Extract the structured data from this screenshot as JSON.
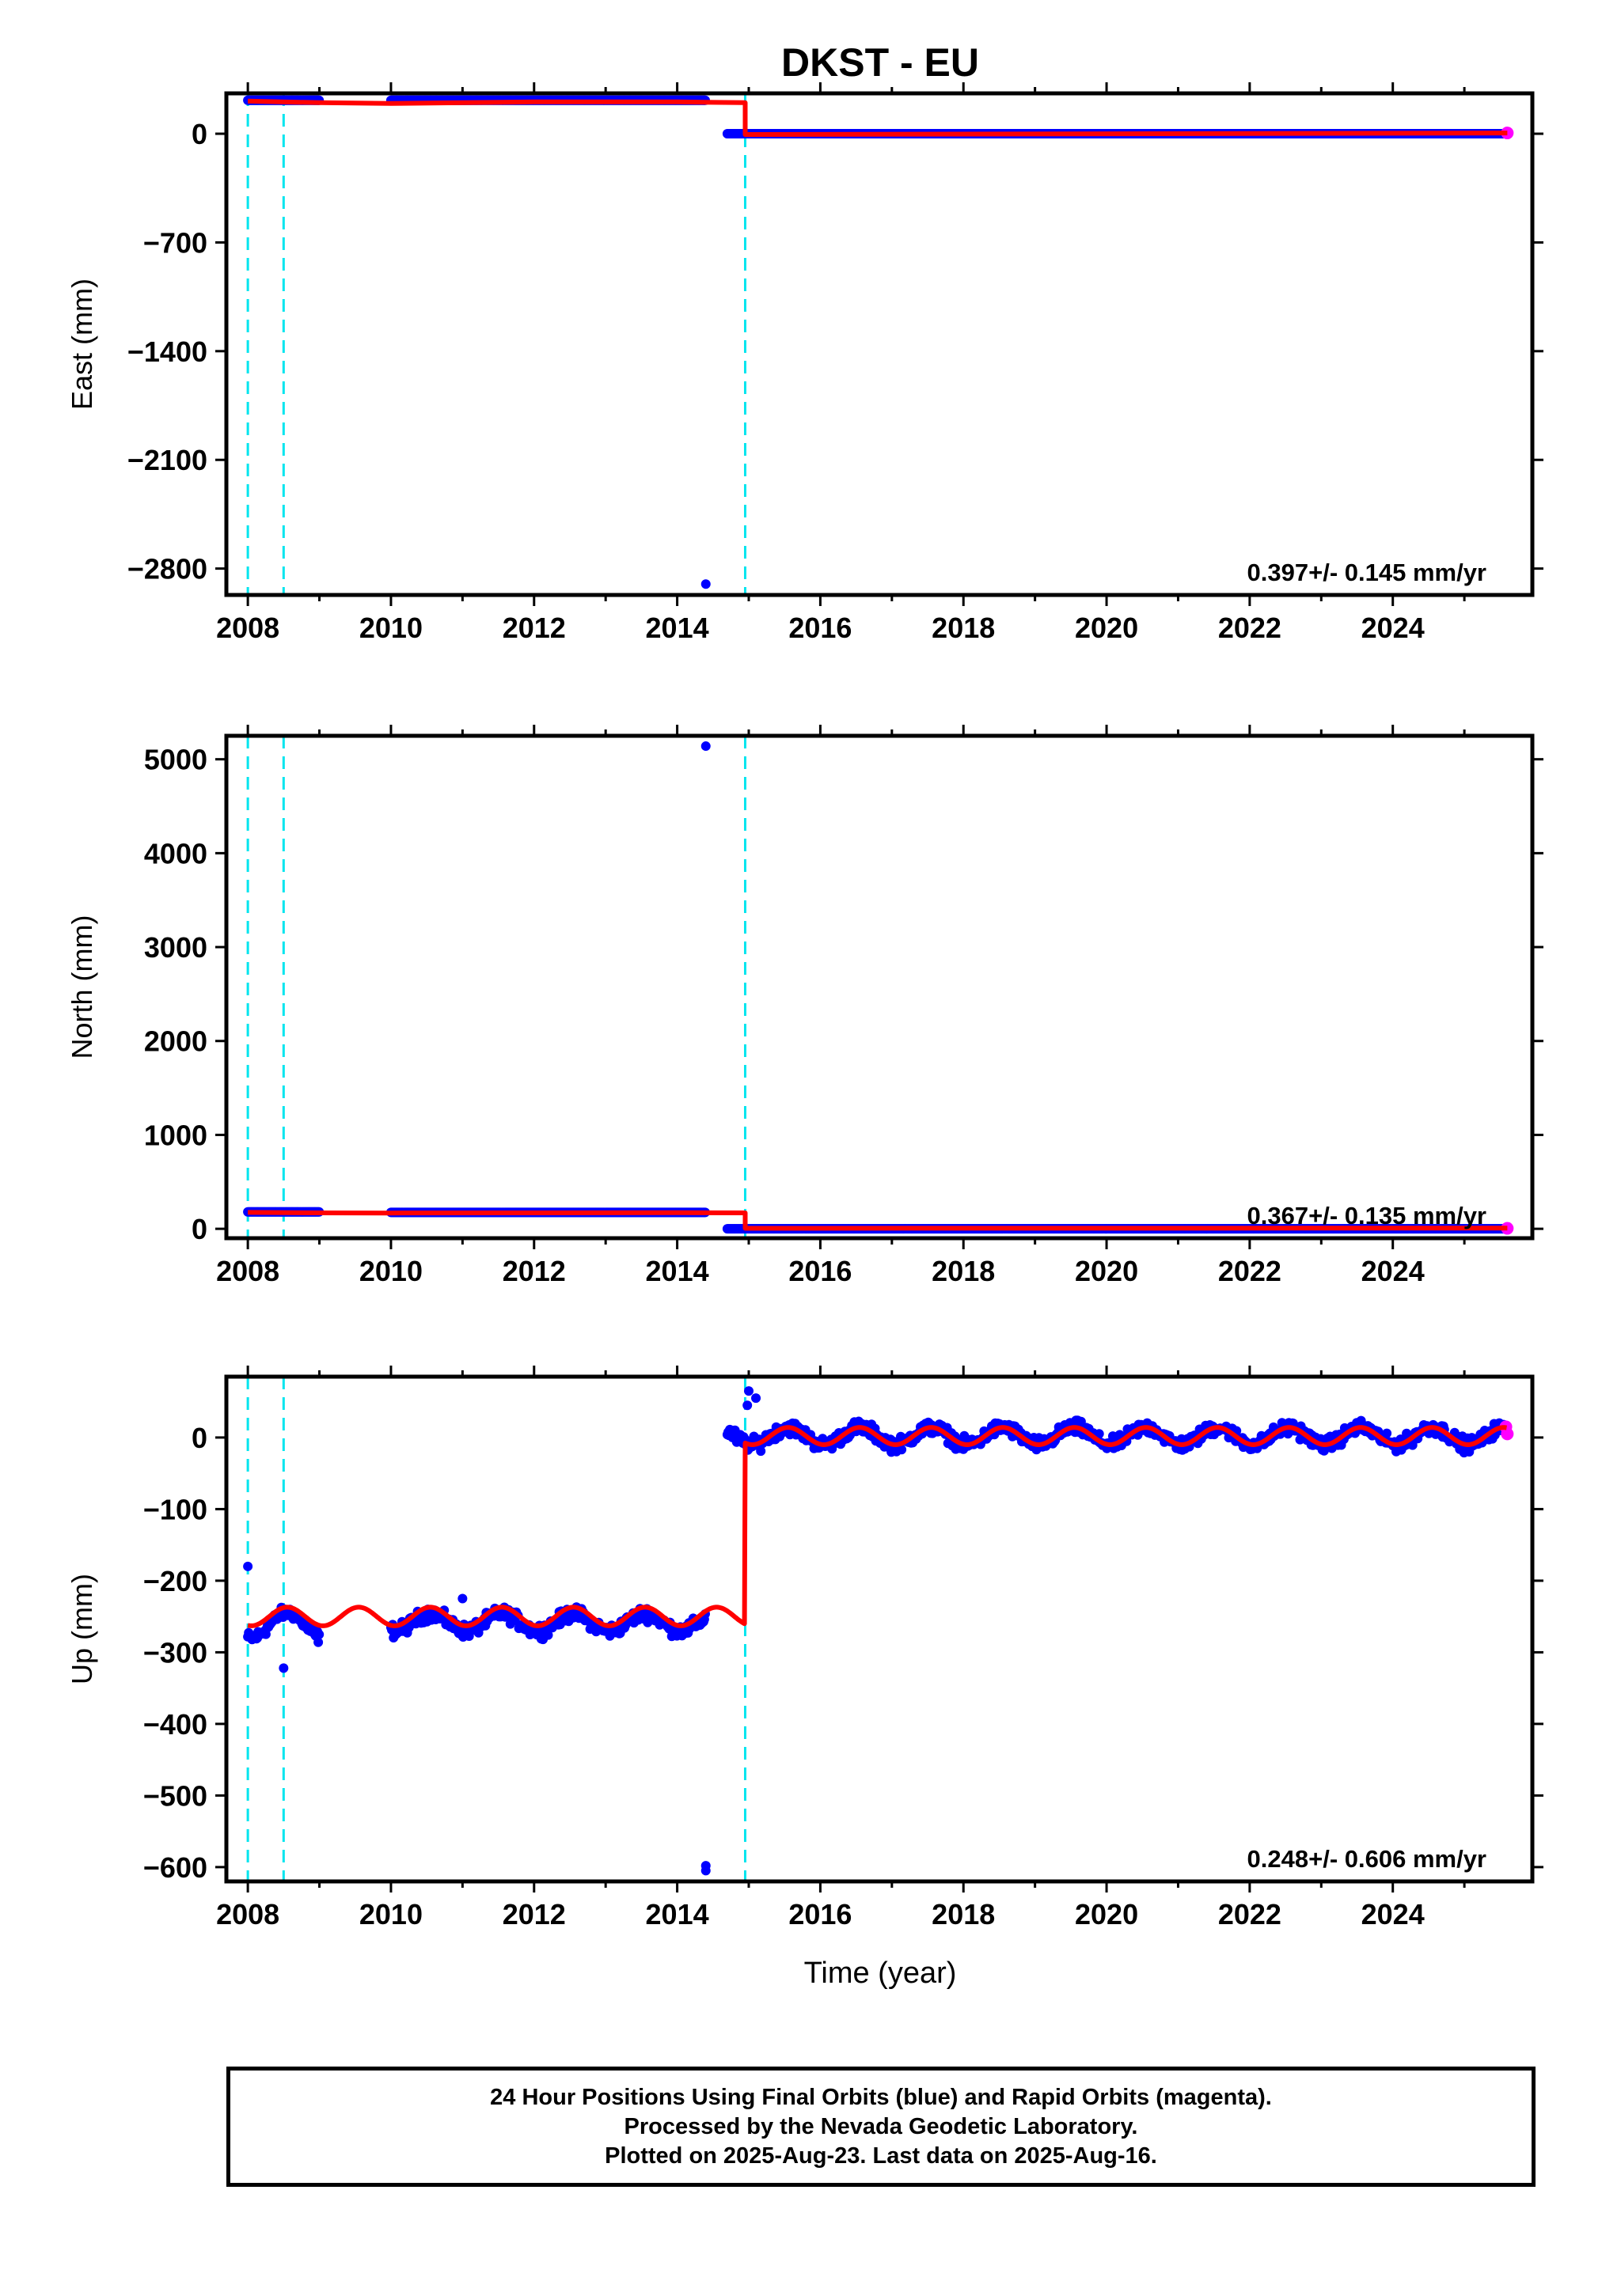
{
  "chart_title": "DKST - EU",
  "xlabel": "Time (year)",
  "colors": {
    "final_orbits": "#0000ff",
    "rapid_orbits": "#ff00ff",
    "model": "#ff0000",
    "steps": "#00e5ee",
    "frame": "#000000"
  },
  "steps": [
    2008.0,
    2008.5,
    2014.95
  ],
  "caption": [
    "24 Hour Positions Using Final Orbits (blue) and Rapid Orbits (magenta).",
    "Processed by the Nevada Geodetic Laboratory.",
    "Plotted on 2025-Aug-23. Last data on 2025-Aug-16."
  ],
  "chart_data": [
    {
      "type": "scatter",
      "component": "east",
      "ylabel": "East (mm)",
      "xlim": [
        2007.7,
        2025.95
      ],
      "ylim": [
        -2970,
        260
      ],
      "xticks": [
        2008,
        2010,
        2012,
        2014,
        2016,
        2018,
        2020,
        2022,
        2024
      ],
      "yticks": [
        0,
        -700,
        -1400,
        -2100,
        -2800
      ],
      "rate_label": "0.397+/- 0.145 mm/yr",
      "series": [
        {
          "name": "Final Orbits",
          "color": "#0000ff",
          "segments": [
            {
              "x_start": 2008.0,
              "x_end": 2009.0,
              "y": 215
            },
            {
              "x_start": 2010.0,
              "x_end": 2014.4,
              "y": 215
            },
            {
              "x_start": 2014.7,
              "x_end": 2025.55,
              "y": 0
            }
          ],
          "outliers": [
            {
              "x": 2014.4,
              "y": -2900
            }
          ]
        },
        {
          "name": "Rapid Orbits",
          "color": "#ff00ff",
          "points": [
            {
              "x": 2025.6,
              "y": 5
            }
          ]
        }
      ],
      "model": [
        [
          2008.0,
          210
        ],
        [
          2009.0,
          200
        ],
        [
          2010.0,
          195
        ],
        [
          2012.0,
          205
        ],
        [
          2014.0,
          205
        ],
        [
          2014.95,
          200
        ],
        [
          2014.95,
          -5
        ],
        [
          2025.6,
          5
        ]
      ]
    },
    {
      "type": "scatter",
      "component": "north",
      "ylabel": "North (mm)",
      "xlim": [
        2007.7,
        2025.95
      ],
      "ylim": [
        -100,
        5250
      ],
      "xticks": [
        2008,
        2010,
        2012,
        2014,
        2016,
        2018,
        2020,
        2022,
        2024
      ],
      "yticks": [
        0,
        1000,
        2000,
        3000,
        4000,
        5000
      ],
      "rate_label": "0.367+/- 0.135 mm/yr",
      "series": [
        {
          "name": "Final Orbits",
          "color": "#0000ff",
          "segments": [
            {
              "x_start": 2008.0,
              "x_end": 2009.0,
              "y": 180
            },
            {
              "x_start": 2010.0,
              "x_end": 2014.4,
              "y": 175
            },
            {
              "x_start": 2014.7,
              "x_end": 2025.55,
              "y": 0
            }
          ],
          "outliers": [
            {
              "x": 2014.4,
              "y": 5140
            }
          ]
        },
        {
          "name": "Rapid Orbits",
          "color": "#ff00ff",
          "points": [
            {
              "x": 2025.6,
              "y": 5
            }
          ]
        }
      ],
      "model": [
        [
          2008.0,
          175
        ],
        [
          2009.0,
          170
        ],
        [
          2010.0,
          168
        ],
        [
          2012.0,
          170
        ],
        [
          2014.0,
          172
        ],
        [
          2014.95,
          170
        ],
        [
          2014.95,
          5
        ],
        [
          2025.6,
          8
        ]
      ]
    },
    {
      "type": "scatter",
      "component": "up",
      "ylabel": "Up (mm)",
      "xlim": [
        2007.7,
        2025.95
      ],
      "ylim": [
        -620,
        85
      ],
      "xticks": [
        2008,
        2010,
        2012,
        2014,
        2016,
        2018,
        2020,
        2022,
        2024
      ],
      "yticks": [
        0,
        -100,
        -200,
        -300,
        -400,
        -500,
        -600
      ],
      "rate_label": "0.248+/- 0.606 mm/yr",
      "series": [
        {
          "name": "Final Orbits",
          "color": "#0000ff",
          "segments": [
            {
              "x_start": 2008.0,
              "x_end": 2009.0,
              "y": -262,
              "amplitude": 18,
              "scatter": 12
            },
            {
              "x_start": 2010.0,
              "x_end": 2014.4,
              "y": -258,
              "amplitude": 12,
              "scatter": 14
            },
            {
              "x_start": 2014.7,
              "x_end": 2025.55,
              "y": 2,
              "amplitude": 12,
              "scatter": 14
            }
          ],
          "outliers": [
            {
              "x": 2008.0,
              "y": -180
            },
            {
              "x": 2008.5,
              "y": -322
            },
            {
              "x": 2011.0,
              "y": -225
            },
            {
              "x": 2014.4,
              "y": -598
            },
            {
              "x": 2014.4,
              "y": -605
            },
            {
              "x": 2015.0,
              "y": 65
            },
            {
              "x": 2015.1,
              "y": 55
            },
            {
              "x": 2014.98,
              "y": 45
            }
          ]
        },
        {
          "name": "Rapid Orbits",
          "color": "#ff00ff",
          "points": [
            {
              "x": 2025.58,
              "y": 15
            },
            {
              "x": 2025.6,
              "y": 5
            }
          ]
        }
      ],
      "model": {
        "before": {
          "x_start": 2008.0,
          "x_end": 2014.95,
          "mean": -250,
          "amplitude": 13
        },
        "after": {
          "x_start": 2014.95,
          "x_end": 2025.6,
          "mean": 2,
          "amplitude": 12
        }
      }
    }
  ]
}
